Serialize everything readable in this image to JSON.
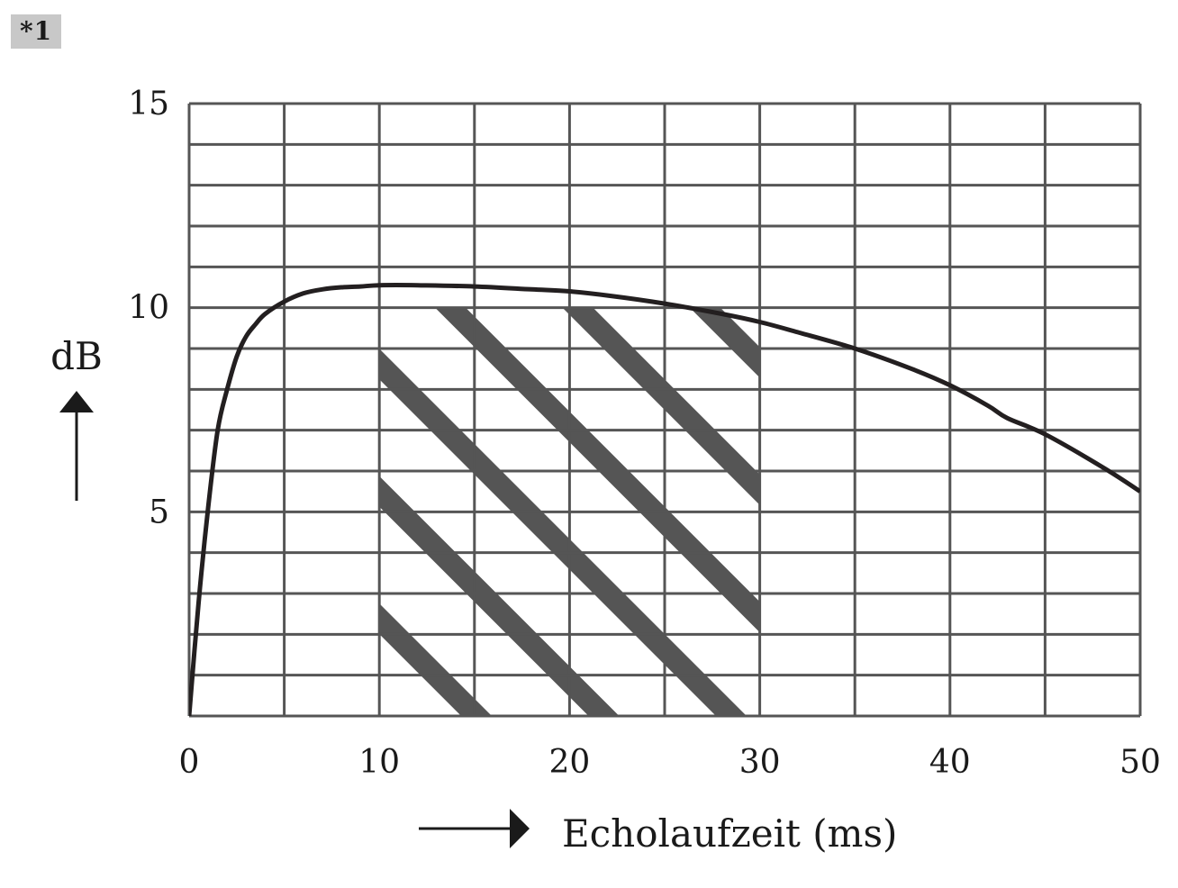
{
  "badge": {
    "label": "*1"
  },
  "colors": {
    "grid": "#555555",
    "curve": "#231f20",
    "hatch": "#555555",
    "text": "#1a1a1a",
    "badge_bg": "#c8c8c8"
  },
  "chart_data": {
    "type": "line",
    "title": "",
    "xlabel": "Echolaufzeit (ms)",
    "ylabel": "dB",
    "xlim": [
      0,
      50
    ],
    "ylim": [
      0,
      15
    ],
    "x_ticks": [
      0,
      10,
      20,
      30,
      40,
      50
    ],
    "y_ticks": [
      5,
      10,
      15
    ],
    "x_grid_step": 5,
    "y_grid_step": 1,
    "grid": true,
    "series": [
      {
        "x": [
          0,
          0.5,
          1,
          1.5,
          2,
          2.5,
          3,
          3.5,
          4,
          5,
          6,
          7,
          8,
          9,
          10,
          12,
          15,
          18,
          20,
          22,
          25,
          28,
          30,
          32,
          35,
          38,
          40,
          42,
          43,
          45,
          48,
          50
        ],
        "values": [
          0,
          2.8,
          5.1,
          7.0,
          8.0,
          8.8,
          9.3,
          9.6,
          9.85,
          10.15,
          10.35,
          10.45,
          10.5,
          10.52,
          10.55,
          10.55,
          10.52,
          10.45,
          10.4,
          10.3,
          10.1,
          9.85,
          9.65,
          9.4,
          9.0,
          8.5,
          8.1,
          7.6,
          7.3,
          6.9,
          6.1,
          5.5
        ]
      }
    ],
    "shaded_region": {
      "x": [
        10,
        30
      ],
      "y": [
        0,
        10
      ],
      "pattern": "diagonal-hatch"
    }
  }
}
